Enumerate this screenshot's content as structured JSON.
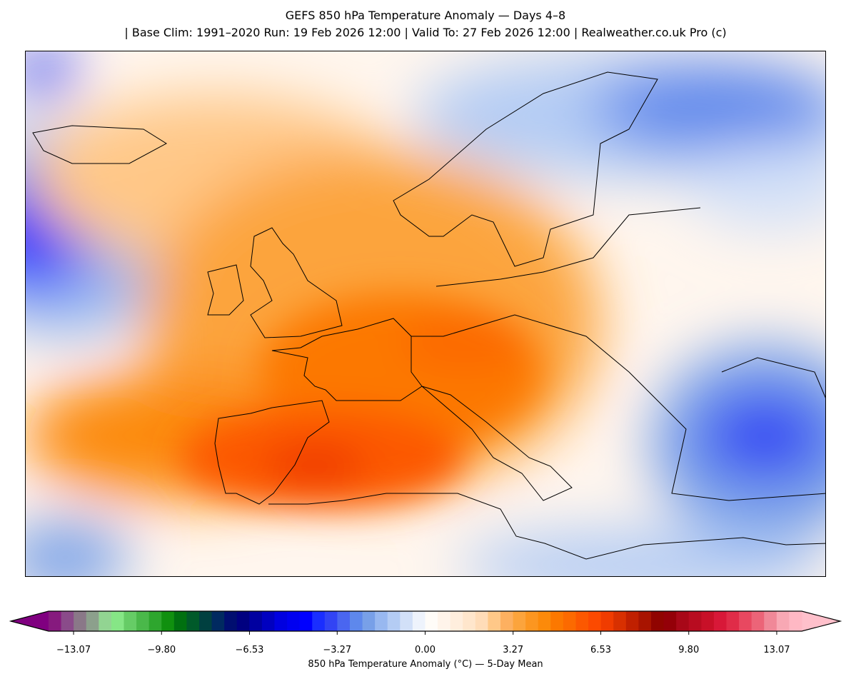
{
  "title": {
    "line1": "GEFS 850 hPa Temperature Anomaly — Days 4–8",
    "line2": "| Base Clim: 1991–2020 Run: 19 Feb 2026 12:00 | Valid To: 27 Feb 2026 12:00 | Realweather.co.uk Pro (c)"
  },
  "colorbar": {
    "label": "850 hPa Temperature Anomaly (°C) — 5-Day Mean",
    "range": [
      -14.0,
      14.0
    ],
    "ticks": [
      "−13.07",
      "−9.80",
      "−6.53",
      "−3.27",
      "0.00",
      "3.27",
      "6.53",
      "9.80",
      "13.07"
    ],
    "tick_values": [
      -13.07,
      -9.8,
      -6.53,
      -3.27,
      0.0,
      3.27,
      6.53,
      9.8,
      13.07
    ],
    "under_color": "#800080",
    "over_color": "#ffc0cb",
    "colors": [
      "#861a7e",
      "#8a4b8a",
      "#8a7888",
      "#8ca08c",
      "#92d492",
      "#86e686",
      "#66cc66",
      "#4ab84a",
      "#2ea62e",
      "#10900f",
      "#007010",
      "#005a2a",
      "#004040",
      "#002a60",
      "#000e70",
      "#000080",
      "#0000a0",
      "#0000c0",
      "#0000e0",
      "#0000f0",
      "#0000ff",
      "#1a2eff",
      "#3244f4",
      "#4a66f0",
      "#5e88ec",
      "#78a0e8",
      "#98b8f0",
      "#b4ccf4",
      "#d2e0f8",
      "#eef3fc",
      "#fffcf8",
      "#fff4ea",
      "#ffeedd",
      "#ffe6cc",
      "#ffdcb8",
      "#ffc888",
      "#fdb060",
      "#fca43c",
      "#fc9620",
      "#fc8a0a",
      "#fc7800",
      "#fc6a00",
      "#fc5800",
      "#fc4a00",
      "#f03c00",
      "#d83000",
      "#c02000",
      "#a81400",
      "#900400",
      "#940008",
      "#a80818",
      "#b80c20",
      "#c81028",
      "#d81838",
      "#e02c48",
      "#e84860",
      "#ec6478",
      "#f08898",
      "#f8a8b4",
      "#ffb8c4"
    ]
  }
}
